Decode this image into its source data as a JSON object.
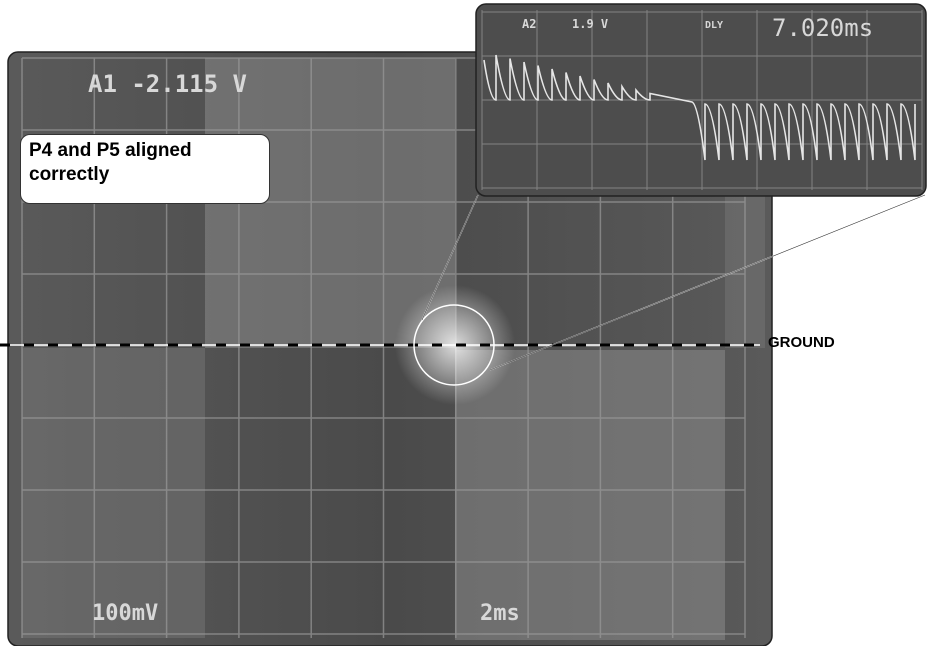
{
  "screen": {
    "channel_readout": "A1 -2.115 V",
    "volts_per_div": "100mV",
    "time_per_div": "2ms"
  },
  "annotation": "P4 and P5 aligned correctly",
  "ground_label": "GROUND",
  "inset": {
    "channel": "A2",
    "voltage": "1.9 V",
    "delay_label": "DLY",
    "delay": "7.020ms"
  }
}
